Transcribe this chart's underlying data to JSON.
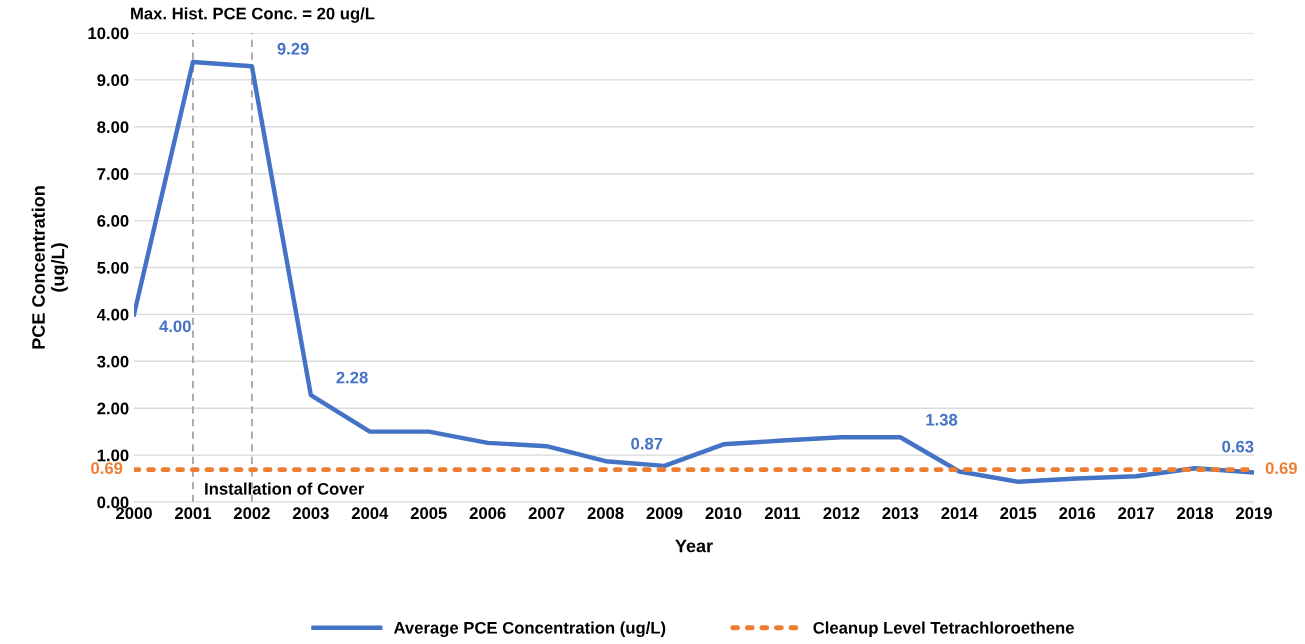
{
  "chart_data": {
    "type": "line",
    "xlabel": "Year",
    "ylabel": "PCE Concentration\n(ug/L)",
    "categories": [
      "2000",
      "2001",
      "2002",
      "2003",
      "2004",
      "2005",
      "2006",
      "2007",
      "2008",
      "2009",
      "2010",
      "2011",
      "2012",
      "2013",
      "2014",
      "2015",
      "2016",
      "2017",
      "2018",
      "2019"
    ],
    "series": [
      {
        "name": "Average PCE Concentration (ug/L)",
        "color": "#4472c4",
        "line_style": "solid",
        "values": [
          4.0,
          9.38,
          9.29,
          2.28,
          1.5,
          1.5,
          1.26,
          1.19,
          0.87,
          0.77,
          1.23,
          1.31,
          1.38,
          1.38,
          0.65,
          0.43,
          0.5,
          0.55,
          0.72,
          0.63
        ],
        "value_labels": [
          "4.00",
          null,
          "9.29",
          "2.28",
          null,
          null,
          null,
          null,
          "0.87",
          null,
          null,
          null,
          null,
          "1.38",
          null,
          null,
          null,
          null,
          null,
          "0.63"
        ]
      },
      {
        "name": "Cleanup Level Tetrachloroethene",
        "color": "#ed7d31",
        "line_style": "dotted",
        "values": [
          0.69,
          0.69,
          0.69,
          0.69,
          0.69,
          0.69,
          0.69,
          0.69,
          0.69,
          0.69,
          0.69,
          0.69,
          0.69,
          0.69,
          0.69,
          0.69,
          0.69,
          0.69,
          0.69,
          0.69
        ],
        "value_labels": [
          "0.69",
          null,
          null,
          null,
          null,
          null,
          null,
          null,
          null,
          null,
          null,
          null,
          null,
          null,
          null,
          null,
          null,
          null,
          null,
          "0.69"
        ]
      }
    ],
    "ylim": [
      0,
      10
    ],
    "yticks": [
      {
        "value": 0,
        "label": "0.00"
      },
      {
        "value": 1,
        "label": "1.00"
      },
      {
        "value": 2,
        "label": "2.00"
      },
      {
        "value": 3,
        "label": "3.00"
      },
      {
        "value": 4,
        "label": "4.00"
      },
      {
        "value": 5,
        "label": "5.00"
      },
      {
        "value": 6,
        "label": "6.00"
      },
      {
        "value": 7,
        "label": "7.00"
      },
      {
        "value": 8,
        "label": "8.00"
      },
      {
        "value": 9,
        "label": "9.00"
      },
      {
        "value": 10,
        "label": "10.00"
      }
    ],
    "ref_lines": [
      {
        "axis": "x",
        "value": "2001",
        "color": "#a6a6a6",
        "line_style": "dashed"
      },
      {
        "axis": "x",
        "value": "2002",
        "color": "#a6a6a6",
        "line_style": "dashed"
      }
    ],
    "annotations": [
      "Max. Hist. PCE Conc. = 20 ug/L",
      {
        "text": "Installation of Cover",
        "x": "2001",
        "y": 0.25
      }
    ],
    "grid": "y",
    "legend": "bottom",
    "marker": "none"
  }
}
